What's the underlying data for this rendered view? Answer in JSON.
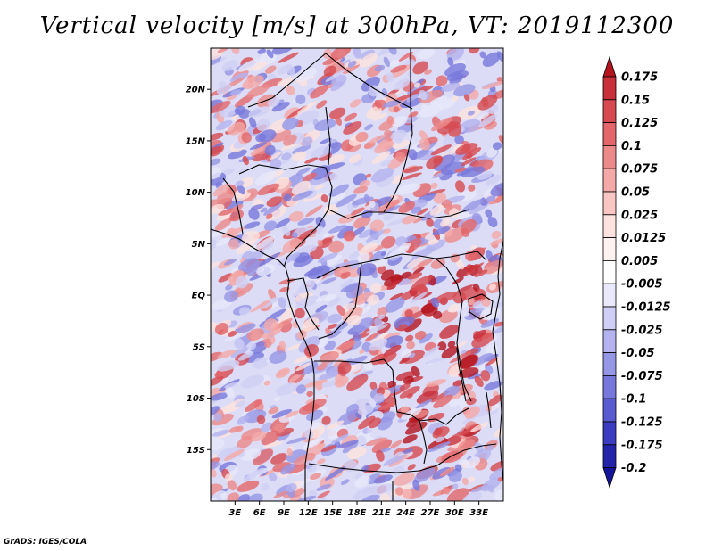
{
  "title": "Vertical velocity [m/s] at 300hPa, VT: 2019112300",
  "credit": "GrADS: IGES/COLA",
  "map": {
    "lon_range_deg": [
      0,
      36
    ],
    "lat_range_deg": [
      -20,
      24
    ],
    "lon_ticks": [
      {
        "deg": 3,
        "label": "3E"
      },
      {
        "deg": 6,
        "label": "6E"
      },
      {
        "deg": 9,
        "label": "9E"
      },
      {
        "deg": 12,
        "label": "12E"
      },
      {
        "deg": 15,
        "label": "15E"
      },
      {
        "deg": 18,
        "label": "18E"
      },
      {
        "deg": 21,
        "label": "21E"
      },
      {
        "deg": 24,
        "label": "24E"
      },
      {
        "deg": 27,
        "label": "27E"
      },
      {
        "deg": 30,
        "label": "30E"
      },
      {
        "deg": 33,
        "label": "33E"
      }
    ],
    "lat_ticks": [
      {
        "deg": 20,
        "label": "20N"
      },
      {
        "deg": 15,
        "label": "15N"
      },
      {
        "deg": 10,
        "label": "10N"
      },
      {
        "deg": 5,
        "label": "5N"
      },
      {
        "deg": 0,
        "label": "EQ"
      },
      {
        "deg": -5,
        "label": "5S"
      },
      {
        "deg": -10,
        "label": "10S"
      },
      {
        "deg": -15,
        "label": "15S"
      }
    ]
  },
  "colorbar": {
    "labels": [
      "0.175",
      "0.15",
      "0.125",
      "0.1",
      "0.075",
      "0.05",
      "0.025",
      "0.0125",
      "0.005",
      "-0.005",
      "-0.0125",
      "-0.025",
      "-0.05",
      "-0.075",
      "-0.1",
      "-0.125",
      "-0.175",
      "-0.2"
    ],
    "colors": [
      "#b4141e",
      "#c8303a",
      "#d64a50",
      "#e2666a",
      "#ec8a8a",
      "#f4a9a8",
      "#f9c6c3",
      "#fde2df",
      "#fff2f0",
      "#ffffff",
      "#e9e9fb",
      "#cfcff5",
      "#b3b3ef",
      "#9696e6",
      "#7878dc",
      "#5a5ad0",
      "#3c3cc0",
      "#2424aa",
      "#14149a"
    ]
  }
}
